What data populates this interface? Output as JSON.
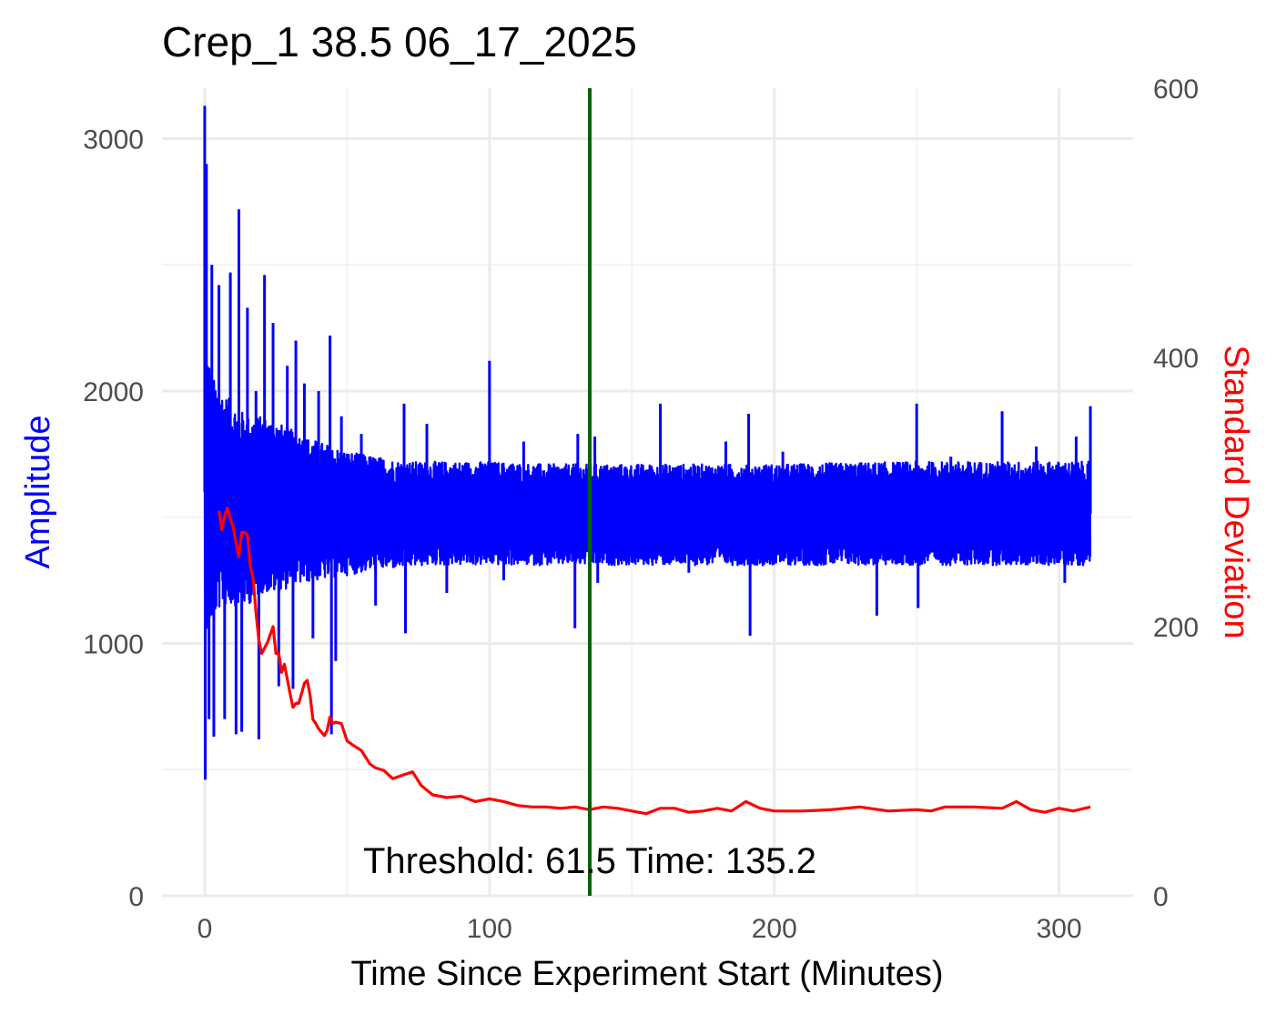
{
  "chart_data": {
    "type": "line",
    "title": "Crep_1 38.5 06_17_2025",
    "xlabel": "Time Since Experiment Start (Minutes)",
    "ylabel": "Amplitude",
    "y2label": "Standard Deviation",
    "xlim": [
      -15,
      326
    ],
    "ylim": [
      0,
      3200
    ],
    "y2lim": [
      0,
      600
    ],
    "x_ticks": [
      0,
      100,
      200,
      300
    ],
    "x_tick_labels": [
      "0",
      "100",
      "200",
      "300"
    ],
    "y_ticks": [
      0,
      1000,
      2000,
      3000
    ],
    "y_tick_labels": [
      "0",
      "1000",
      "2000",
      "3000"
    ],
    "y2_ticks": [
      0,
      200,
      400,
      600
    ],
    "y2_tick_labels": [
      "0",
      "200",
      "400",
      "600"
    ],
    "grid": true,
    "colors": {
      "amplitude": "#0000ff",
      "sd": "#ff0000",
      "threshold": "#006400",
      "text": "#000000"
    },
    "annotation": {
      "text": "Threshold: 61.5 Time: 135.2",
      "x": 90,
      "y": 90
    },
    "threshold_line": {
      "x": 135.2
    },
    "series": [
      {
        "axis": "left",
        "color": "#0000ff",
        "envelope": {
          "x": [
            0,
            1,
            3,
            6,
            10,
            15,
            20,
            25,
            30,
            35,
            40,
            45,
            50,
            60,
            70,
            80,
            100,
            120,
            140,
            160,
            200,
            250,
            300,
            311
          ],
          "upper": [
            2200,
            2150,
            2050,
            2000,
            1950,
            1900,
            1900,
            1880,
            1850,
            1820,
            1800,
            1780,
            1760,
            1740,
            1720,
            1720,
            1720,
            1710,
            1710,
            1710,
            1710,
            1720,
            1720,
            1720
          ],
          "lower": [
            1000,
            1050,
            1100,
            1150,
            1150,
            1150,
            1200,
            1200,
            1220,
            1240,
            1250,
            1260,
            1270,
            1290,
            1300,
            1310,
            1310,
            1310,
            1310,
            1310,
            1310,
            1310,
            1310,
            1310
          ]
        },
        "spikes": [
          {
            "x": 0,
            "y": 3130
          },
          {
            "x": 0.2,
            "y": 460
          },
          {
            "x": 0.6,
            "y": 2900
          },
          {
            "x": 1.5,
            "y": 700
          },
          {
            "x": 2.5,
            "y": 2500
          },
          {
            "x": 3.2,
            "y": 630
          },
          {
            "x": 5,
            "y": 2420
          },
          {
            "x": 7,
            "y": 700
          },
          {
            "x": 9,
            "y": 2470
          },
          {
            "x": 11,
            "y": 640
          },
          {
            "x": 12,
            "y": 2720
          },
          {
            "x": 13,
            "y": 650
          },
          {
            "x": 15,
            "y": 2330
          },
          {
            "x": 18,
            "y": 2000
          },
          {
            "x": 19,
            "y": 620
          },
          {
            "x": 21,
            "y": 2460
          },
          {
            "x": 24,
            "y": 2270
          },
          {
            "x": 26,
            "y": 830
          },
          {
            "x": 29,
            "y": 2100
          },
          {
            "x": 31,
            "y": 820
          },
          {
            "x": 32,
            "y": 2200
          },
          {
            "x": 35,
            "y": 2030
          },
          {
            "x": 38,
            "y": 1020
          },
          {
            "x": 40,
            "y": 2000
          },
          {
            "x": 44,
            "y": 2220
          },
          {
            "x": 44.5,
            "y": 640
          },
          {
            "x": 46,
            "y": 930
          },
          {
            "x": 48,
            "y": 1900
          },
          {
            "x": 55,
            "y": 1830
          },
          {
            "x": 60,
            "y": 1150
          },
          {
            "x": 70,
            "y": 1950
          },
          {
            "x": 70.5,
            "y": 1040
          },
          {
            "x": 78,
            "y": 1870
          },
          {
            "x": 85,
            "y": 1200
          },
          {
            "x": 100,
            "y": 2120
          },
          {
            "x": 105,
            "y": 1250
          },
          {
            "x": 112,
            "y": 1800
          },
          {
            "x": 130,
            "y": 1060
          },
          {
            "x": 131,
            "y": 1830
          },
          {
            "x": 137,
            "y": 1820
          },
          {
            "x": 138,
            "y": 1240
          },
          {
            "x": 160,
            "y": 1950
          },
          {
            "x": 170,
            "y": 1280
          },
          {
            "x": 183,
            "y": 1800
          },
          {
            "x": 191,
            "y": 1910
          },
          {
            "x": 191.5,
            "y": 1030
          },
          {
            "x": 203,
            "y": 1760
          },
          {
            "x": 236,
            "y": 1110
          },
          {
            "x": 250,
            "y": 1950
          },
          {
            "x": 250.5,
            "y": 1140
          },
          {
            "x": 262,
            "y": 1740
          },
          {
            "x": 280,
            "y": 1920
          },
          {
            "x": 292,
            "y": 1780
          },
          {
            "x": 302,
            "y": 1240
          },
          {
            "x": 306,
            "y": 1820
          },
          {
            "x": 311,
            "y": 1940
          }
        ]
      },
      {
        "axis": "right",
        "color": "#ff0000",
        "x": [
          5,
          6,
          7,
          8,
          9,
          10,
          11,
          12,
          13,
          14,
          15,
          16,
          17,
          18,
          19,
          20,
          22,
          24,
          25,
          26,
          27,
          28,
          30,
          31,
          32,
          33,
          34,
          35,
          36,
          37,
          38,
          39,
          40,
          42,
          43,
          44,
          45,
          46,
          48,
          50,
          52,
          55,
          58,
          60,
          63,
          66,
          70,
          73,
          76,
          80,
          85,
          90,
          95,
          100,
          105,
          110,
          115,
          120,
          125,
          130,
          135,
          140,
          145,
          150,
          155,
          160,
          165,
          170,
          175,
          180,
          185,
          190,
          195,
          200,
          210,
          220,
          230,
          240,
          250,
          255,
          260,
          270,
          280,
          285,
          290,
          295,
          300,
          305,
          311
        ],
        "y": [
          286,
          272,
          282,
          288,
          280,
          274,
          262,
          252,
          270,
          270,
          268,
          245,
          236,
          210,
          190,
          180,
          188,
          200,
          180,
          180,
          166,
          172,
          150,
          140,
          143,
          143,
          150,
          158,
          160,
          149,
          131,
          128,
          124,
          119,
          123,
          133,
          128,
          129,
          128,
          115,
          112,
          108,
          98,
          95,
          93,
          87,
          90,
          92,
          82,
          75,
          73,
          74,
          70,
          72,
          70,
          67,
          66,
          66,
          65,
          66,
          64,
          66,
          65,
          63,
          61,
          65,
          65,
          62,
          63,
          65,
          63,
          70,
          65,
          63,
          63,
          64,
          66,
          63,
          64,
          63,
          66,
          66,
          65,
          70,
          64,
          62,
          65,
          63,
          66
        ]
      }
    ]
  }
}
